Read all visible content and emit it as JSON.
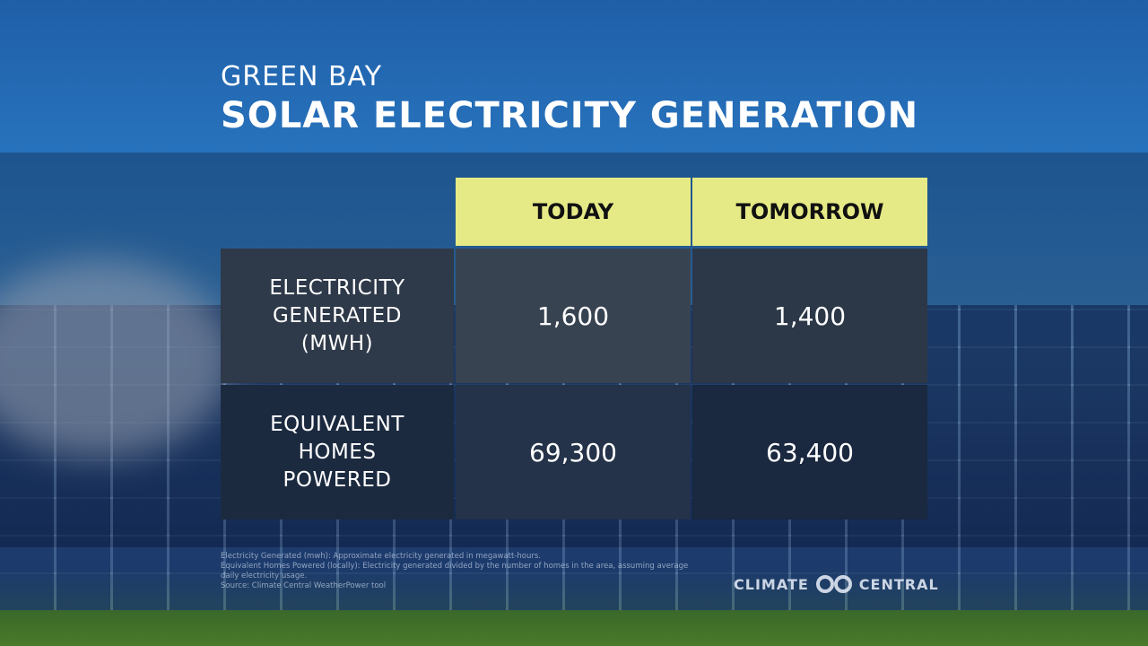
{
  "header": {
    "location": "GREEN BAY",
    "title": "SOLAR ELECTRICITY GENERATION"
  },
  "table": {
    "columns": [
      "TODAY",
      "TOMORROW"
    ],
    "rows": [
      [
        "ELECTRICITY GENERATED (MWH)",
        "1,600",
        "1,400"
      ],
      [
        "EQUIVALENT HOMES POWERED",
        "69,300",
        "63,400"
      ]
    ]
  },
  "footnotes": [
    "Electricity Generated (mwh): Approximate electricity generated in megawatt-hours.",
    "Equivalent Homes Powered (locally): Electricity generated divided by the number of homes in the area, assuming average daily electricity usage.",
    "Source: Climate Central WeatherPower tool"
  ],
  "logo": {
    "left": "CLIMATE",
    "right": "CENTRAL"
  }
}
